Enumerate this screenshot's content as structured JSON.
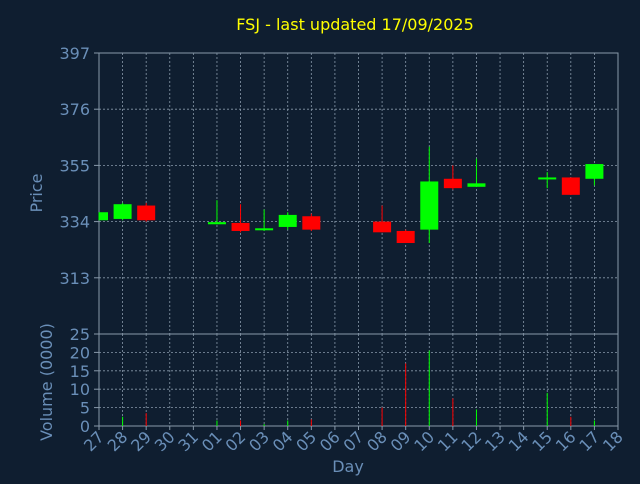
{
  "chart_data": {
    "type": "candlestick",
    "title": "FSJ - last updated 17/09/2025",
    "xlabel": "Day",
    "price_panel": {
      "ylabel": "Price",
      "ylim": [
        292,
        397
      ],
      "yticks": [
        397,
        376,
        355,
        334,
        313
      ]
    },
    "volume_panel": {
      "ylabel": "Volume (0000)",
      "ylim": [
        0,
        25
      ],
      "yticks": [
        25,
        20,
        15,
        10,
        5,
        0
      ]
    },
    "categories": [
      "27",
      "28",
      "29",
      "30",
      "31",
      "01",
      "02",
      "03",
      "04",
      "05",
      "06",
      "07",
      "08",
      "09",
      "10",
      "11",
      "12",
      "13",
      "14",
      "15",
      "16",
      "17",
      "18"
    ],
    "series": [
      {
        "day": "27",
        "open": 334.5,
        "close": 337.5,
        "high": 337.5,
        "low": 334.5,
        "volume": 0.0
      },
      {
        "day": "28",
        "open": 335.0,
        "close": 340.5,
        "high": 341.0,
        "low": 334.5,
        "volume": 2.5
      },
      {
        "day": "29",
        "open": 340.0,
        "close": 334.5,
        "high": 341.0,
        "low": 334.0,
        "volume": 3.5
      },
      {
        "day": "01",
        "open": 333.0,
        "close": 333.8,
        "high": 342.0,
        "low": 333.0,
        "volume": 1.5
      },
      {
        "day": "02",
        "open": 333.5,
        "close": 330.5,
        "high": 340.5,
        "low": 330.0,
        "volume": 1.5
      },
      {
        "day": "03",
        "open": 331.0,
        "close": 331.5,
        "high": 338.5,
        "low": 330.5,
        "volume": 0.5
      },
      {
        "day": "04",
        "open": 332.0,
        "close": 336.5,
        "high": 337.5,
        "low": 331.0,
        "volume": 1.5
      },
      {
        "day": "05",
        "open": 336.0,
        "close": 331.0,
        "high": 337.0,
        "low": 330.5,
        "volume": 1.8
      },
      {
        "day": "08",
        "open": 334.0,
        "close": 330.0,
        "high": 340.0,
        "low": 330.0,
        "volume": 5.0
      },
      {
        "day": "09",
        "open": 330.5,
        "close": 326.0,
        "high": 331.0,
        "low": 326.0,
        "volume": 17.0
      },
      {
        "day": "10",
        "open": 331.0,
        "close": 349.0,
        "high": 362.0,
        "low": 326.0,
        "volume": 20.5
      },
      {
        "day": "11",
        "open": 350.0,
        "close": 346.5,
        "high": 355.0,
        "low": 346.0,
        "volume": 7.5
      },
      {
        "day": "12",
        "open": 347.0,
        "close": 348.3,
        "high": 357.5,
        "low": 347.0,
        "volume": 4.5
      },
      {
        "day": "15",
        "open": 350.0,
        "close": 350.5,
        "high": 352.5,
        "low": 346.5,
        "volume": 9.0
      },
      {
        "day": "16",
        "open": 350.5,
        "close": 344.0,
        "high": 350.5,
        "low": 344.0,
        "volume": 2.5
      },
      {
        "day": "17",
        "open": 350.0,
        "close": 355.5,
        "high": 355.5,
        "low": 347.5,
        "volume": 1.5
      }
    ],
    "up_color": "#00ff00",
    "down_color": "#ff0000",
    "grid": true
  },
  "colors": {
    "background": "#0f1e30",
    "grid": "#8899aa",
    "axis_text": "#6a8fb8",
    "title_text": "#ffff00",
    "frame": "#8899aa"
  }
}
